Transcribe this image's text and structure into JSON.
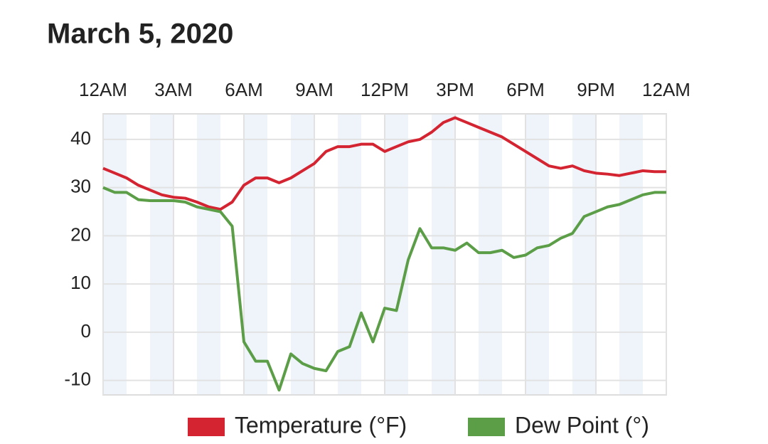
{
  "chart_data": {
    "type": "line",
    "title": "March 5, 2020",
    "x": [
      0,
      0.5,
      1,
      1.5,
      2,
      2.5,
      3,
      3.5,
      4,
      4.5,
      5,
      5.5,
      6,
      6.5,
      7,
      7.5,
      8,
      8.5,
      9,
      9.5,
      10,
      10.5,
      11,
      11.5,
      12,
      12.5,
      13,
      13.5,
      14,
      14.5,
      15,
      15.5,
      16,
      16.5,
      17,
      17.5,
      18,
      18.5,
      19,
      19.5,
      20,
      20.5,
      21,
      21.5,
      22,
      22.5,
      23,
      23.5,
      24
    ],
    "series": [
      {
        "name": "Temperature (°F)",
        "color": "#d42431",
        "values": [
          34,
          33,
          32,
          30.5,
          29.5,
          28.5,
          28,
          27.8,
          27,
          26,
          25.5,
          27,
          30.5,
          32,
          32,
          31,
          32,
          33.5,
          35,
          37.5,
          38.5,
          38.5,
          39,
          39,
          37.5,
          38.5,
          39.5,
          40,
          41.5,
          43.5,
          44.5,
          43.5,
          42.5,
          41.5,
          40.5,
          39,
          37.5,
          36,
          34.5,
          34,
          34.5,
          33.5,
          33,
          32.8,
          32.5,
          33,
          33.5,
          33.3,
          33.3
        ]
      },
      {
        "name": "Dew Point (°)",
        "color": "#5b9e47",
        "values": [
          30,
          29,
          29,
          27.5,
          27.3,
          27.3,
          27.3,
          27,
          26,
          25.5,
          25,
          22,
          -2,
          -6,
          -6,
          -12,
          -4.5,
          -6.5,
          -7.5,
          -8,
          -4,
          -3,
          4,
          -2,
          5,
          4.5,
          15,
          21.5,
          17.5,
          17.5,
          17,
          18.5,
          16.5,
          16.5,
          17,
          15.5,
          16,
          17.5,
          18,
          19.5,
          20.5,
          24,
          25,
          26,
          26.5,
          27.5,
          28.5,
          29,
          29
        ]
      }
    ],
    "xlim": [
      0,
      24
    ],
    "xticks": [
      {
        "value": 0,
        "label": "12AM"
      },
      {
        "value": 3,
        "label": "3AM"
      },
      {
        "value": 6,
        "label": "6AM"
      },
      {
        "value": 9,
        "label": "9AM"
      },
      {
        "value": 12,
        "label": "12PM"
      },
      {
        "value": 15,
        "label": "3PM"
      },
      {
        "value": 18,
        "label": "6PM"
      },
      {
        "value": 21,
        "label": "9PM"
      },
      {
        "value": 24,
        "label": "12AM"
      }
    ],
    "ylim": [
      -13,
      45.3
    ],
    "yticks": [
      -10,
      0,
      10,
      20,
      30,
      40
    ],
    "grid": true,
    "legend": "bottom"
  }
}
